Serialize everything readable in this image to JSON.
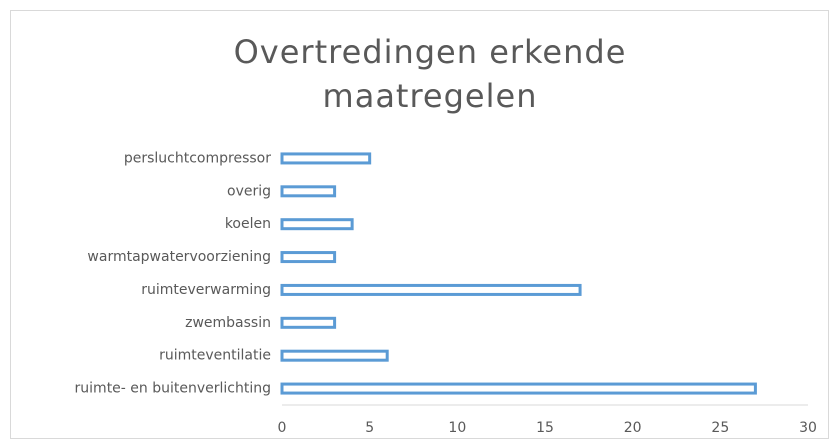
{
  "chart_data": {
    "type": "hbar",
    "title": "Overtredingen erkende maatregelen",
    "categories": [
      "persluchtcompressor",
      "overig",
      "koelen",
      "warmtapwatervoorziening",
      "ruimteverwarming",
      "zwembassin",
      "ruimteventilatie",
      "ruimte- en buitenverlichting"
    ],
    "values": [
      5,
      3,
      4,
      3,
      17,
      3,
      6,
      27
    ],
    "color": "#5b9bd5",
    "xlim": [
      0,
      30
    ],
    "xticks": [
      0,
      5,
      10,
      15,
      20,
      25,
      30
    ],
    "grid": false
  }
}
